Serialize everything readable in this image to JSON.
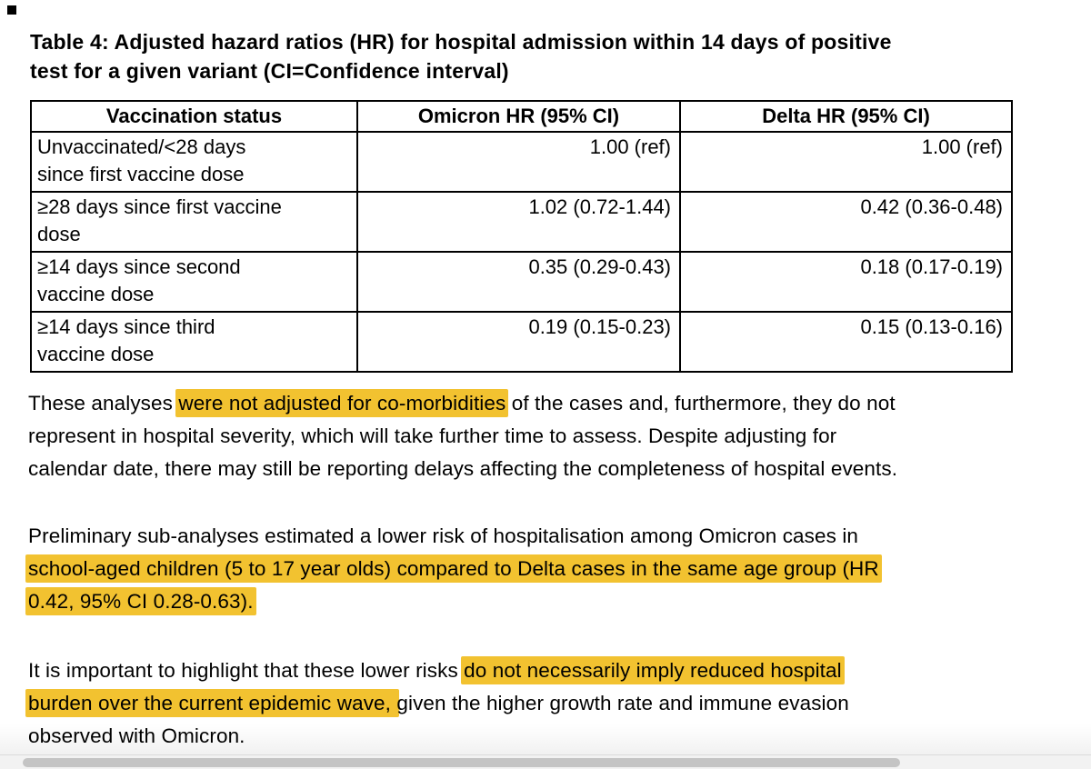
{
  "title": {
    "l1": "Table 4: Adjusted hazard ratios (HR) for hospital admission within 14 days of positive",
    "l2": "test for a given variant (CI=Confidence interval)"
  },
  "table": {
    "headers": [
      "Vaccination status",
      "Omicron HR (95% CI)",
      "Delta HR (95% CI)"
    ],
    "rows": [
      {
        "label_lines": [
          "Unvaccinated/<28 days",
          "since first vaccine dose"
        ],
        "omicron": "1.00 (ref)",
        "delta": "1.00 (ref)"
      },
      {
        "label_lines": [
          "≥28 days since first vaccine",
          "dose"
        ],
        "omicron": "1.02 (0.72-1.44)",
        "delta": "0.42 (0.36-0.48)"
      },
      {
        "label_lines": [
          "≥14 days since second",
          "vaccine dose"
        ],
        "omicron": "0.35 (0.29-0.43)",
        "delta": "0.18 (0.17-0.19)"
      },
      {
        "label_lines": [
          "≥14 days since third",
          "vaccine dose"
        ],
        "omicron": "0.19 (0.15-0.23)",
        "delta": "0.15 (0.13-0.16)"
      }
    ]
  },
  "paragraphs": {
    "p1": {
      "l1_pre": "These analyses ",
      "l1_hl": "were not adjusted for co-morbidities",
      "l1_post": " of the cases and, furthermore, they do not",
      "l2": "represent in hospital severity, which will take further time to assess. Despite adjusting for",
      "l3": "calendar date, there may still be reporting delays affecting the completeness of hospital events."
    },
    "p2": {
      "l1": "Preliminary sub-analyses estimated a lower risk of hospitalisation among Omicron cases in",
      "l2_hl": "school-aged children (5 to 17 year olds) compared to Delta cases in the same age group (HR",
      "l3_hl": "0.42, 95% CI 0.28-0.63)."
    },
    "p3": {
      "l1_pre": "It is important to highlight that these lower risks ",
      "l1_hl": "do not necessarily imply reduced hospital",
      "l2_hl": "burden over the current epidemic wave, ",
      "l2_post": "given the higher growth rate and immune evasion",
      "l3": "observed with Omicron."
    }
  },
  "colors": {
    "highlight": "#F2C230",
    "scrollbar_thumb": "#C4C4C4",
    "scrollbar_track": "#F2F2F2"
  }
}
